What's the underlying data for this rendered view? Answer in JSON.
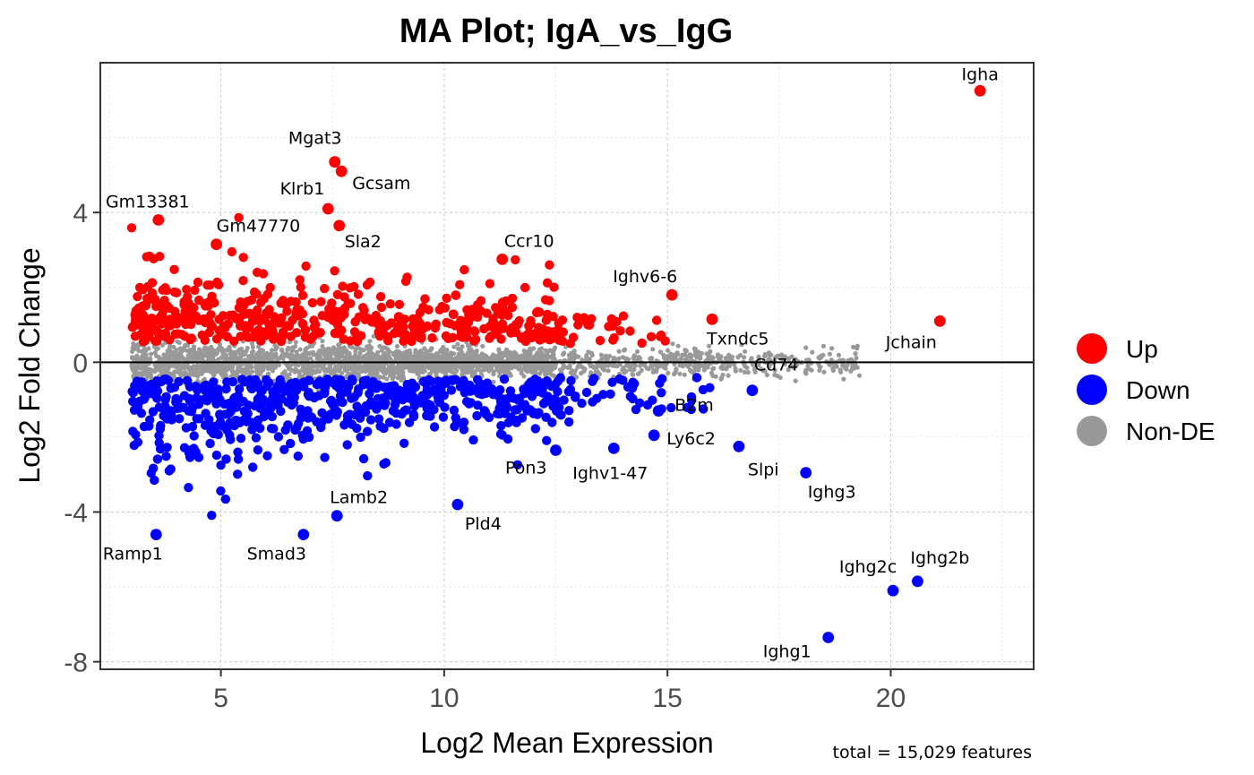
{
  "chart_data": {
    "type": "scatter",
    "title": "MA Plot; IgA_vs_IgG",
    "xlabel": "Log2 Mean Expression",
    "ylabel": "Log2 Fold Change",
    "caption": "total = 15,029 features",
    "xlim": [
      2.3,
      23.2
    ],
    "ylim": [
      -8.2,
      8.0
    ],
    "xticks": [
      5,
      10,
      15,
      20
    ],
    "yticks": [
      -8,
      -4,
      0,
      4
    ],
    "xtick_labels": [
      "5",
      "10",
      "15",
      "20"
    ],
    "ytick_labels": [
      "-8",
      "-4",
      "0",
      "4"
    ],
    "grid": true,
    "hline": 0,
    "legend": {
      "position": "right",
      "entries": [
        {
          "name": "Up",
          "color": "#ff0000"
        },
        {
          "name": "Down",
          "color": "#0000ff"
        },
        {
          "name": "Non-DE",
          "color": "#999999"
        }
      ]
    },
    "highlighted_points": [
      {
        "gene": "Igha",
        "x": 22.0,
        "y": 7.25,
        "group": "Up"
      },
      {
        "gene": "Mgat3",
        "x": 7.55,
        "y": 5.35,
        "group": "Up"
      },
      {
        "gene": "Gcsam",
        "x": 7.7,
        "y": 5.1,
        "group": "Up"
      },
      {
        "gene": "Klrb1",
        "x": 7.4,
        "y": 4.1,
        "group": "Up"
      },
      {
        "gene": "Gm13381",
        "x": 3.6,
        "y": 3.8,
        "group": "Up"
      },
      {
        "gene": "Gm47770",
        "x": 4.9,
        "y": 3.15,
        "group": "Up"
      },
      {
        "gene": "Sla2",
        "x": 7.65,
        "y": 3.65,
        "group": "Up"
      },
      {
        "gene": "Ccr10",
        "x": 11.3,
        "y": 2.75,
        "group": "Up"
      },
      {
        "gene": "Ighv6-6",
        "x": 15.1,
        "y": 1.8,
        "group": "Up"
      },
      {
        "gene": "Jchain",
        "x": 21.1,
        "y": 1.1,
        "group": "Up"
      },
      {
        "gene": "Txndc5",
        "x": 16.0,
        "y": 1.15,
        "group": "Up"
      },
      {
        "gene": "Cd74",
        "x": 16.9,
        "y": -0.75,
        "group": "Down"
      },
      {
        "gene": "B2m",
        "x": 14.8,
        "y": -1.3,
        "group": "Down"
      },
      {
        "gene": "Ly6c2",
        "x": 14.7,
        "y": -1.95,
        "group": "Down"
      },
      {
        "gene": "Slpi",
        "x": 16.6,
        "y": -2.25,
        "group": "Down"
      },
      {
        "gene": "Ighg3",
        "x": 18.1,
        "y": -2.95,
        "group": "Down"
      },
      {
        "gene": "Pon3",
        "x": 12.5,
        "y": -2.35,
        "group": "Down"
      },
      {
        "gene": "Ighv1-47",
        "x": 13.8,
        "y": -2.3,
        "group": "Down"
      },
      {
        "gene": "Lamb2",
        "x": 7.6,
        "y": -4.1,
        "group": "Down"
      },
      {
        "gene": "Pld4",
        "x": 10.3,
        "y": -3.8,
        "group": "Down"
      },
      {
        "gene": "Ramp1",
        "x": 3.55,
        "y": -4.6,
        "group": "Down"
      },
      {
        "gene": "Smad3",
        "x": 6.85,
        "y": -4.6,
        "group": "Down"
      },
      {
        "gene": "Ighg2b",
        "x": 20.6,
        "y": -5.85,
        "group": "Down"
      },
      {
        "gene": "Ighg2c",
        "x": 20.05,
        "y": -6.1,
        "group": "Down"
      },
      {
        "gene": "Ighg1",
        "x": 18.6,
        "y": -7.35,
        "group": "Down"
      }
    ]
  }
}
